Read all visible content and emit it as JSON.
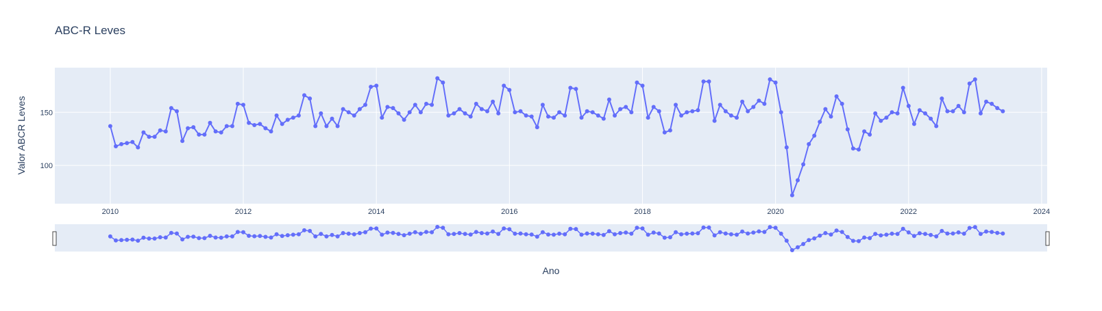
{
  "chart_data": {
    "type": "line",
    "title": "ABC-R Leves",
    "xlabel": "Ano",
    "ylabel": "Valor ABCR Leves",
    "x_start": "2010-01",
    "x_end": "2023-06",
    "xlim": [
      "2009-03",
      "2024-02"
    ],
    "ylim": [
      64,
      192
    ],
    "x_ticks": [
      "2010",
      "2012",
      "2014",
      "2016",
      "2018",
      "2020",
      "2022",
      "2024"
    ],
    "y_ticks": [
      100,
      150
    ],
    "series": [
      {
        "color": "#636efa",
        "values": [
          137,
          118,
          120,
          121,
          122,
          117,
          131,
          127,
          127,
          133,
          132,
          154,
          151,
          123,
          135,
          136,
          129,
          129,
          140,
          132,
          131,
          137,
          137,
          158,
          157,
          140,
          138,
          139,
          135,
          132,
          147,
          139,
          143,
          145,
          147,
          166,
          163,
          137,
          149,
          137,
          144,
          137,
          153,
          150,
          147,
          153,
          157,
          174,
          175,
          145,
          155,
          154,
          149,
          143,
          150,
          157,
          150,
          158,
          157,
          182,
          178,
          147,
          149,
          153,
          149,
          146,
          158,
          153,
          151,
          160,
          149,
          175,
          171,
          150,
          151,
          147,
          146,
          136,
          157,
          146,
          145,
          150,
          147,
          173,
          172,
          145,
          151,
          150,
          147,
          144,
          162,
          147,
          153,
          155,
          150,
          178,
          175,
          145,
          155,
          151,
          131,
          133,
          157,
          147,
          150,
          151,
          152,
          179,
          179,
          142,
          157,
          151,
          147,
          145,
          160,
          151,
          155,
          161,
          158,
          181,
          178,
          150,
          117,
          72,
          86,
          101,
          120,
          128,
          141,
          153,
          146,
          165,
          158,
          134,
          116,
          115,
          132,
          129,
          149,
          142,
          145,
          150,
          149,
          173,
          156,
          139,
          152,
          149,
          144,
          137,
          163,
          151,
          151,
          156,
          150,
          177,
          181,
          149,
          160,
          158,
          154,
          151
        ]
      }
    ]
  },
  "rangeslider": {
    "visible": true
  }
}
